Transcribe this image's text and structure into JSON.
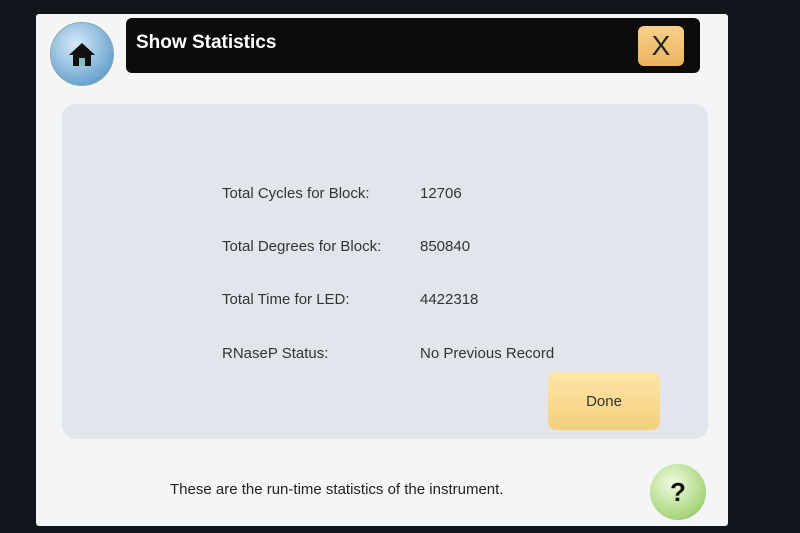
{
  "header": {
    "title": "Show Statistics",
    "close_label": "X",
    "home_icon": "home-icon"
  },
  "stats": [
    {
      "label": "Total Cycles for Block:",
      "value": "12706"
    },
    {
      "label": "Total Degrees for Block:",
      "value": "850840"
    },
    {
      "label": "Total Time for LED:",
      "value": "4422318"
    },
    {
      "label": "RNaseP Status:",
      "value": "No Previous Record"
    }
  ],
  "done_label": "Done",
  "footer": {
    "text": "These are the run-time statistics of the instrument.",
    "help_label": "?"
  }
}
